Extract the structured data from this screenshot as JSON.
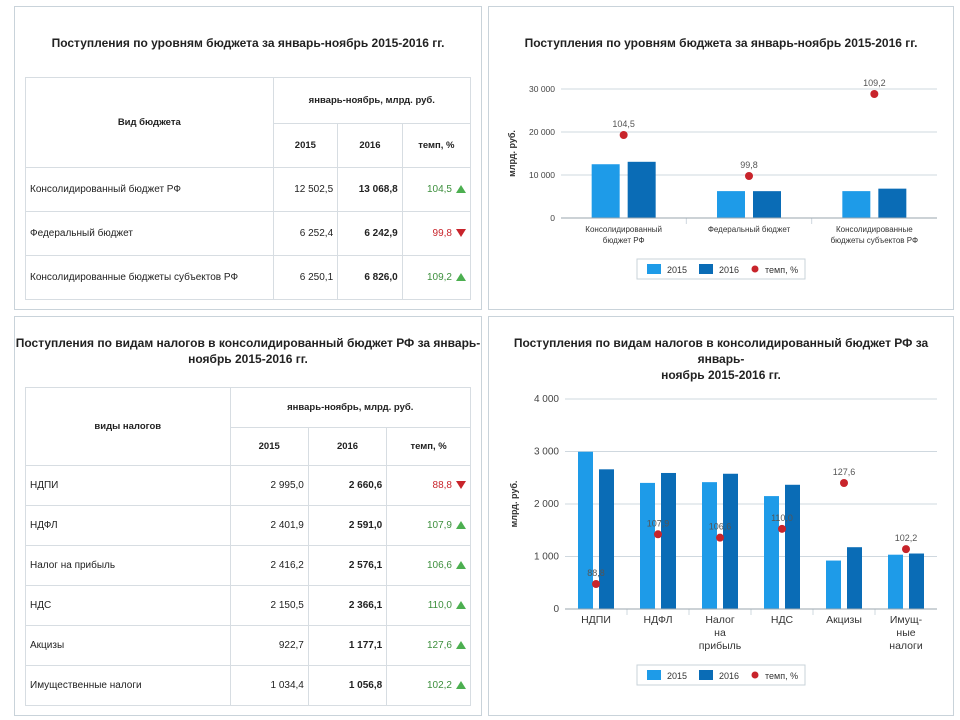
{
  "budget_panel": {
    "title": "Поступления по уровням бюджета  за январь-ноябрь 2015-2016 гг.",
    "table": {
      "row_header": "Вид бюджета",
      "group_header": "январь-ноябрь, млрд. руб.",
      "col_2015": "2015",
      "col_2016": "2016",
      "col_rate": "темп, %",
      "rows": [
        {
          "label": "Консолидированный бюджет РФ",
          "v2015": "12 502,5",
          "v2016": "13 068,8",
          "rate": "104,5",
          "trend": "up"
        },
        {
          "label": "Федеральный бюджет",
          "v2015": "6 252,4",
          "v2016": "6 242,9",
          "rate": "99,8",
          "trend": "down"
        },
        {
          "label": "Консолидированные бюджеты субъектов РФ",
          "v2015": "6 250,1",
          "v2016": "6 826,0",
          "rate": "109,2",
          "trend": "up"
        }
      ]
    }
  },
  "tax_panel": {
    "title_line1": "Поступления по видам налогов в консолидированный бюджет РФ  за январь-",
    "title_line2": "ноябрь 2015-2016 гг.",
    "table": {
      "row_header": "виды налогов",
      "group_header": "январь-ноябрь, млрд. руб.",
      "col_2015": "2015",
      "col_2016": "2016",
      "col_rate": "темп, %",
      "rows": [
        {
          "label": "НДПИ",
          "v2015": "2 995,0",
          "v2016": "2 660,6",
          "rate": "88,8",
          "trend": "down"
        },
        {
          "label": "НДФЛ",
          "v2015": "2 401,9",
          "v2016": "2 591,0",
          "rate": "107,9",
          "trend": "up"
        },
        {
          "label": "Налог на прибыль",
          "v2015": "2 416,2",
          "v2016": "2 576,1",
          "rate": "106,6",
          "trend": "up"
        },
        {
          "label": "НДС",
          "v2015": "2 150,5",
          "v2016": "2 366,1",
          "rate": "110,0",
          "trend": "up"
        },
        {
          "label": "Акцизы",
          "v2015": "922,7",
          "v2016": "1 177,1",
          "rate": "127,6",
          "trend": "up"
        },
        {
          "label": "Имущественные налоги",
          "v2015": "1 034,4",
          "v2016": "1 056,8",
          "rate": "102,2",
          "trend": "up"
        }
      ]
    }
  },
  "colors": {
    "c2015": "#1e9be8",
    "c2016": "#0a6cb6",
    "rate": "#c8242b",
    "grid": "#cfd8df",
    "up": "#4caf50",
    "down": "#c8242b"
  },
  "chart_data": [
    {
      "type": "bar",
      "title": "Поступления по уровням бюджета  за январь-ноябрь 2015-2016 гг.",
      "ylabel": "млрд. руб.",
      "ylim": [
        0,
        30000
      ],
      "yticks": [
        0,
        10000,
        20000,
        30000
      ],
      "ytick_labels": [
        "0",
        "10 000",
        "20 000",
        "30 000"
      ],
      "categories": [
        [
          "Консолидированный",
          "бюджет РФ"
        ],
        [
          "Федеральный бюджет"
        ],
        [
          "Консолидированные",
          "бюджеты субъектов РФ"
        ]
      ],
      "series": [
        {
          "name": "2015",
          "values": [
            12502.5,
            6252.4,
            6250.1
          ]
        },
        {
          "name": "2016",
          "values": [
            13068.8,
            6242.9,
            6826.0
          ]
        }
      ],
      "rate": {
        "name": "темп, %",
        "values": [
          104.5,
          99.8,
          109.2
        ],
        "labels": [
          "104,5",
          "99,8",
          "109,2"
        ]
      },
      "legend": "bottom",
      "grid": true
    },
    {
      "type": "bar",
      "title": "Поступления по видам налогов в консолидированный бюджет РФ  за январь-ноябрь 2015-2016 гг.",
      "ylabel": "млрд. руб.",
      "ylim": [
        0,
        4000
      ],
      "yticks": [
        0,
        1000,
        2000,
        3000,
        4000
      ],
      "ytick_labels": [
        "0",
        "1 000",
        "2 000",
        "3 000",
        "4 000"
      ],
      "categories": [
        [
          "НДПИ"
        ],
        [
          "НДФЛ"
        ],
        [
          "Налог",
          "на",
          "прибыль"
        ],
        [
          "НДС"
        ],
        [
          "Акцизы"
        ],
        [
          "Имущ-",
          "ные",
          "налоги"
        ]
      ],
      "series": [
        {
          "name": "2015",
          "values": [
            2995.0,
            2401.9,
            2416.2,
            2150.5,
            922.7,
            1034.4
          ]
        },
        {
          "name": "2016",
          "values": [
            2660.6,
            2591.0,
            2576.1,
            2366.1,
            1177.1,
            1056.8
          ]
        }
      ],
      "rate": {
        "name": "темп, %",
        "values": [
          88.8,
          107.9,
          106.6,
          110.0,
          127.6,
          102.2
        ],
        "labels": [
          "88,8",
          "107,9",
          "106,6",
          "110,0",
          "127,6",
          "102,2"
        ]
      },
      "legend": "bottom",
      "grid": true
    }
  ]
}
